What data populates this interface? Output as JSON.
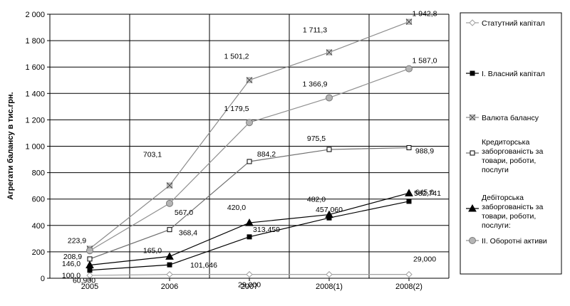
{
  "chart_data": {
    "type": "line",
    "categories": [
      "2005",
      "2006",
      "2007",
      "2008(1)",
      "2008(2)"
    ],
    "ylabel": "Агрегати балансу в тис.грн.",
    "ylim": [
      0,
      2000
    ],
    "y_ticks": [
      "0",
      "200",
      "400",
      "600",
      "800",
      "1 000",
      "1 200",
      "1 400",
      "1 600",
      "1 800",
      "2 000"
    ],
    "grid": true,
    "legend_position": "right",
    "series": [
      {
        "name": "Статутний капітал",
        "values": [
          21.9,
          28.8,
          29.0,
          29.0,
          29.0
        ],
        "labels": [
          "",
          "",
          "29,000",
          "",
          "29,000"
        ],
        "color": "#a0a0a0",
        "marker": "diamond"
      },
      {
        "name": "І. Власний капітал",
        "values": [
          60.9,
          101.646,
          313.459,
          457.06,
          582.741
        ],
        "labels": [
          "60,900",
          "101,646",
          "313,459",
          "457,060",
          "582,741"
        ],
        "color": "#000000",
        "marker": "square-filled"
      },
      {
        "name": "Валюта балансу",
        "values": [
          223.9,
          703.1,
          1501.2,
          1711.3,
          1942.8
        ],
        "labels": [
          "223,9",
          "703,1",
          "1 501,2",
          "1 711,3",
          "1 942,8"
        ],
        "color": "#8c8c8c",
        "marker": "x"
      },
      {
        "name": "Кредиторська заборгованість за товари, роботи, послуги",
        "values": [
          146.0,
          368.4,
          884.2,
          975.5,
          988.9
        ],
        "labels": [
          "146,0",
          "368,4",
          "884,2",
          "975,5",
          "988,9"
        ],
        "color": "#707070",
        "marker": "square-open"
      },
      {
        "name": "Дебіторська заборгованість за товари, роботи, послуги:",
        "values": [
          100.0,
          165.0,
          420.0,
          482.0,
          645.0
        ],
        "labels": [
          "100,0",
          "165,0",
          "420,0",
          "482,0",
          "645,0"
        ],
        "color": "#000000",
        "marker": "triangle"
      },
      {
        "name": "ІІ. Оборотні активи",
        "values": [
          208.9,
          567.0,
          1179.5,
          1366.9,
          1587.0
        ],
        "labels": [
          "208,9",
          "567,0",
          "1 179,5",
          "1 366,9",
          "1 587,0"
        ],
        "color": "#909090",
        "marker": "circle"
      }
    ]
  }
}
